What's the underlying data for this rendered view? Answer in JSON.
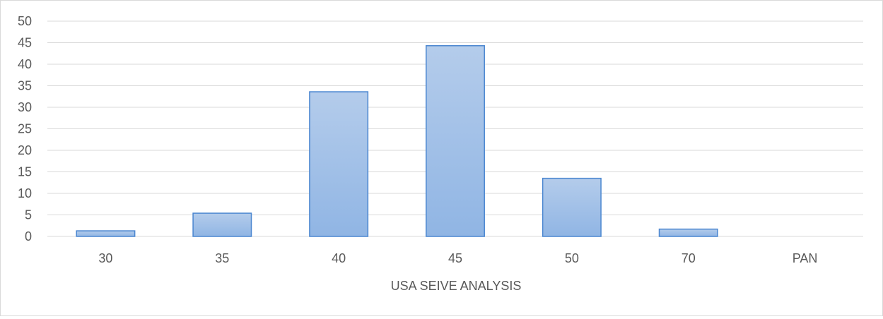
{
  "chart_data": {
    "type": "bar",
    "title": "",
    "xlabel": "USA SEIVE ANALYSIS",
    "ylabel": "",
    "categories": [
      "30",
      "35",
      "40",
      "45",
      "50",
      "70",
      "PAN"
    ],
    "values": [
      1.3,
      5.4,
      33.6,
      44.3,
      13.5,
      1.7,
      0
    ],
    "ylim": [
      0,
      50
    ],
    "yticks": [
      "0",
      "5",
      "10",
      "15",
      "20",
      "25",
      "30",
      "35",
      "40",
      "45",
      "50"
    ],
    "grid": true,
    "legend": "none",
    "colors": {
      "bar_top": "#b4cceb",
      "bar_bottom": "#90b5e4",
      "bar_stroke": "#4a86d0",
      "grid": "#d9d9d9",
      "text": "#595959"
    }
  }
}
